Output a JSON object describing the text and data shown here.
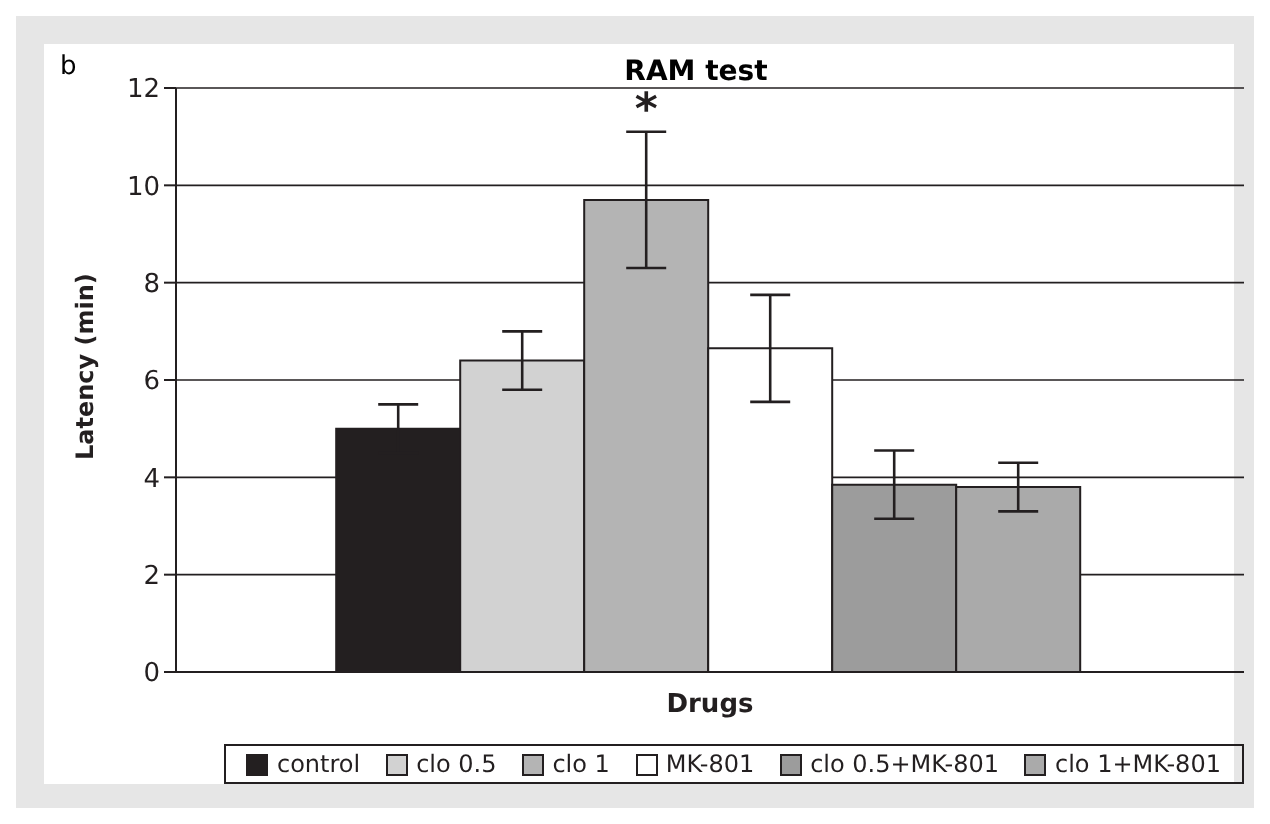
{
  "chart_data": {
    "type": "bar",
    "title": "RAM test",
    "xlabel": "Drugs",
    "ylabel": "Latency (min)",
    "categories": [
      null
    ],
    "series": [
      {
        "name": "control",
        "color": "#231f20",
        "values": [
          5.0
        ],
        "errors": [
          0.5
        ]
      },
      {
        "name": "clo 0.5",
        "color": "#d2d2d2",
        "values": [
          6.4
        ],
        "errors": [
          0.6
        ]
      },
      {
        "name": "clo 1",
        "color": "#b4b4b4",
        "values": [
          9.7
        ],
        "errors": [
          1.4
        ]
      },
      {
        "name": "MK-801",
        "color": "#ffffff",
        "values": [
          6.65
        ],
        "errors": [
          1.1
        ]
      },
      {
        "name": "clo 0.5+MK-801",
        "color": "#9c9c9c",
        "values": [
          3.85
        ],
        "errors": [
          0.7
        ]
      },
      {
        "name": "clo 1+MK-801",
        "color": "#aaaaaa",
        "values": [
          3.8
        ],
        "errors": [
          0.5
        ]
      }
    ],
    "annotations": [
      "b",
      "*"
    ],
    "ylim": [
      0,
      12
    ],
    "yticks": [
      0,
      2,
      4,
      6,
      8,
      10,
      12
    ],
    "grid": "y",
    "legend": "bottom"
  }
}
